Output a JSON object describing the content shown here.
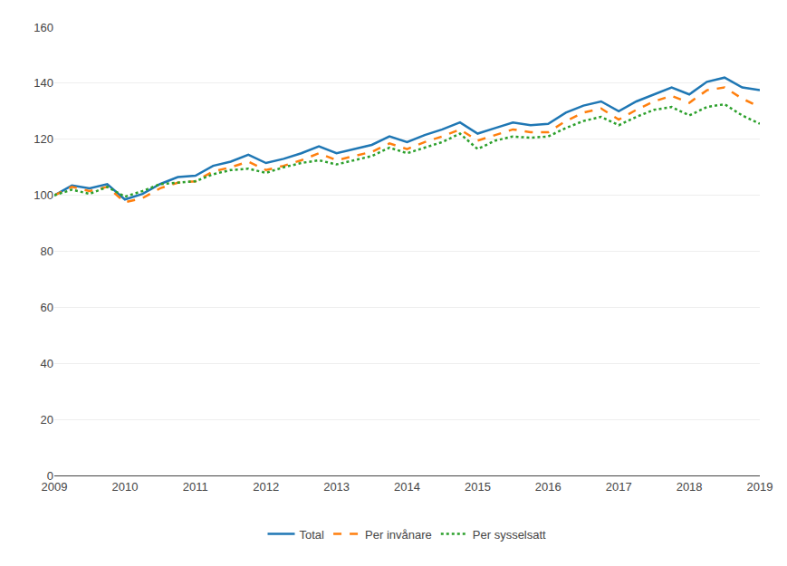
{
  "chart_data": {
    "type": "line",
    "categories": [
      "2009",
      null,
      null,
      null,
      "2010",
      null,
      null,
      null,
      "2011",
      null,
      null,
      null,
      "2012",
      null,
      null,
      null,
      "2013",
      null,
      null,
      null,
      "2014",
      null,
      null,
      null,
      "2015",
      null,
      null,
      null,
      "2016",
      null,
      null,
      null,
      "2017",
      null,
      null,
      null,
      "2018",
      null,
      null,
      null,
      "2019"
    ],
    "series": [
      {
        "name": "Total",
        "line_style": "solid",
        "values": [
          100.0,
          103.5,
          102.5,
          104.0,
          98.5,
          100.5,
          104.0,
          106.5,
          107.0,
          110.5,
          112.0,
          114.5,
          111.5,
          113.0,
          115.0,
          117.5,
          115.0,
          116.5,
          118.0,
          121.0,
          119.0,
          121.5,
          123.5,
          126.0,
          122.0,
          124.0,
          126.0,
          125.0,
          125.5,
          129.5,
          132.0,
          133.5,
          130.0,
          133.5,
          136.0,
          138.5,
          136.0,
          140.5,
          142.0,
          138.5,
          137.5
        ]
      },
      {
        "name": "Per invånare",
        "line_style": "dashed",
        "values": [
          100.0,
          103.0,
          101.5,
          103.0,
          97.5,
          99.0,
          102.5,
          104.5,
          105.0,
          108.5,
          110.0,
          112.0,
          109.0,
          110.5,
          112.5,
          115.0,
          112.5,
          114.0,
          115.5,
          118.5,
          116.5,
          119.0,
          121.0,
          123.5,
          119.5,
          121.5,
          123.5,
          122.5,
          122.5,
          126.5,
          129.5,
          131.0,
          127.0,
          130.5,
          133.5,
          135.5,
          133.0,
          137.5,
          138.5,
          134.5,
          131.5
        ]
      },
      {
        "name": "Per sysselsatt",
        "line_style": "dotted",
        "values": [
          100.0,
          102.0,
          100.5,
          103.0,
          99.5,
          101.5,
          104.0,
          104.5,
          105.0,
          107.5,
          109.0,
          109.5,
          108.0,
          110.0,
          111.5,
          112.5,
          111.0,
          112.5,
          114.0,
          117.0,
          115.0,
          117.0,
          119.0,
          122.0,
          116.5,
          119.5,
          121.0,
          120.5,
          121.0,
          124.0,
          126.5,
          128.0,
          125.0,
          128.0,
          130.5,
          131.5,
          128.5,
          131.5,
          132.5,
          128.5,
          125.5
        ]
      }
    ],
    "ylim": [
      0,
      160
    ],
    "yticks": [
      0,
      20,
      40,
      60,
      80,
      100,
      120,
      140,
      160
    ],
    "grid": true,
    "legend": "bottom"
  }
}
